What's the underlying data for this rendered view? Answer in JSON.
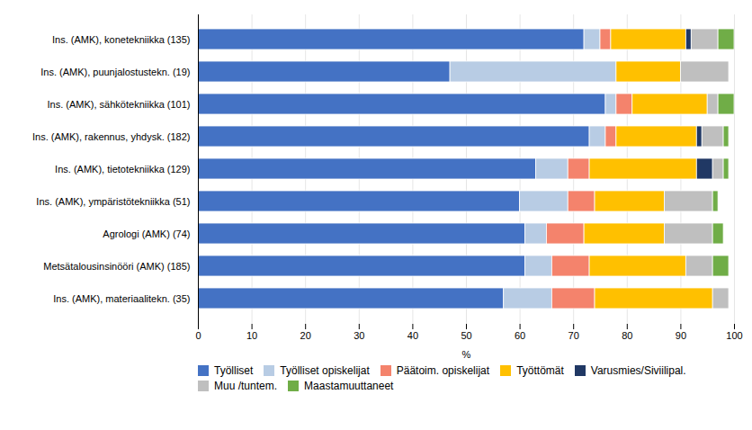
{
  "chart_data": {
    "type": "bar",
    "orientation": "horizontal",
    "stacked": true,
    "categories": [
      "Ins. (AMK), konetekniikka (135)",
      "Ins. (AMK), puunjalostustekn. (19)",
      "Ins. (AMK), sähkötekniikka (101)",
      "Ins. (AMK), rakennus, yhdysk. (182)",
      "Ins. (AMK), tietotekniikka (129)",
      "Ins. (AMK), ympäristötekniikka (51)",
      "Agrologi (AMK) (74)",
      "Metsätalousinsinööri (AMK) (185)",
      "Ins. (AMK), materiaalitekn. (35)"
    ],
    "series": [
      {
        "name": "Työlliset",
        "color": "#4472C4",
        "values": [
          72,
          47,
          76,
          73,
          63,
          60,
          61,
          61,
          57
        ]
      },
      {
        "name": "Työlliset opiskelijat",
        "color": "#B8CCE4",
        "values": [
          3,
          31,
          2,
          3,
          6,
          9,
          4,
          5,
          9
        ]
      },
      {
        "name": "Päätoim. opiskelijat",
        "color": "#F4836C",
        "values": [
          2,
          0,
          3,
          2,
          4,
          5,
          7,
          7,
          8
        ]
      },
      {
        "name": "Työttömät",
        "color": "#FFC000",
        "values": [
          14,
          12,
          14,
          15,
          20,
          13,
          15,
          18,
          22
        ]
      },
      {
        "name": "Varusmies/Siviilipal.",
        "color": "#203864",
        "values": [
          1,
          0,
          0,
          1,
          3,
          0,
          0,
          0,
          0
        ]
      },
      {
        "name": "Muu /tuntem.",
        "color": "#BFBFBF",
        "values": [
          5,
          9,
          2,
          4,
          2,
          9,
          9,
          5,
          3
        ]
      },
      {
        "name": "Maastamuuttaneet",
        "color": "#70AD47",
        "values": [
          3,
          0,
          3,
          1,
          1,
          1,
          2,
          3,
          0
        ]
      }
    ],
    "xlim": [
      0,
      100
    ],
    "xticks": [
      0,
      10,
      20,
      30,
      40,
      50,
      60,
      70,
      80,
      90,
      100
    ],
    "xlabel": "%",
    "grid": true,
    "legend": "bottom"
  }
}
